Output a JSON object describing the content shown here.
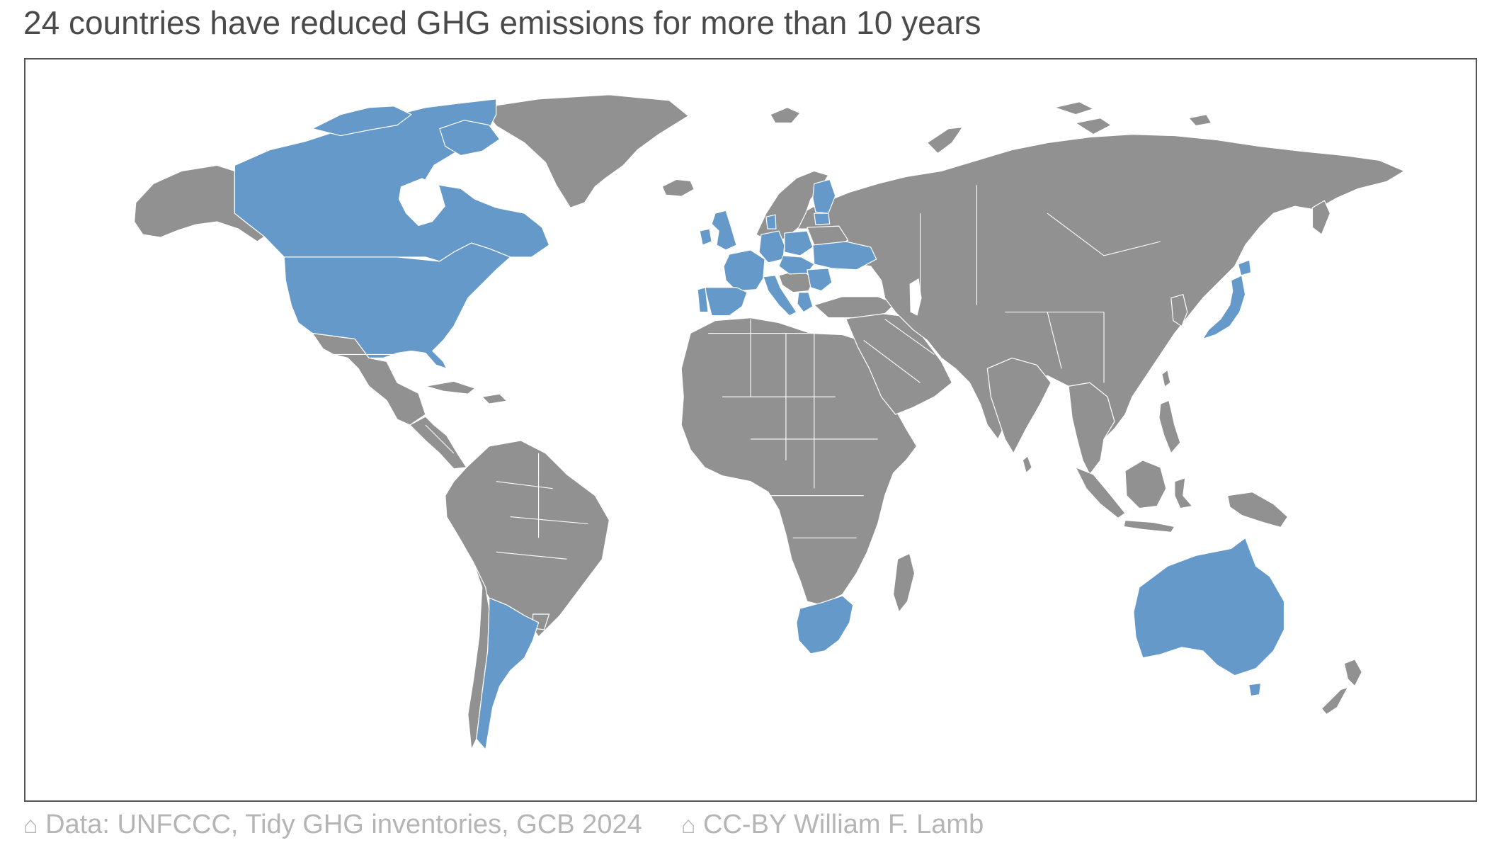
{
  "title": "24 countries have reduced GHG emissions for more than 10 years",
  "footer": {
    "source_icon": "house-icon",
    "source_text": "Data: UNFCCC, Tidy GHG inventories, GCB 2024",
    "license_icon": "house-icon",
    "license_text": "CC-BY William F. Lamb"
  },
  "colors": {
    "highlighted": "#6499c9",
    "other": "#919191",
    "borders": "#ffffff",
    "frame": "#555555"
  },
  "highlighted_regions": [
    "Canada",
    "United States",
    "Argentina",
    "South Africa",
    "Australia",
    "Japan",
    "United Kingdom",
    "Ireland",
    "France",
    "Spain",
    "Portugal",
    "Italy",
    "Germany",
    "Denmark",
    "Poland",
    "Czechia",
    "Slovakia",
    "Hungary",
    "Romania",
    "Bulgaria",
    "Greece",
    "Ukraine",
    "Finland",
    "Latvia"
  ]
}
